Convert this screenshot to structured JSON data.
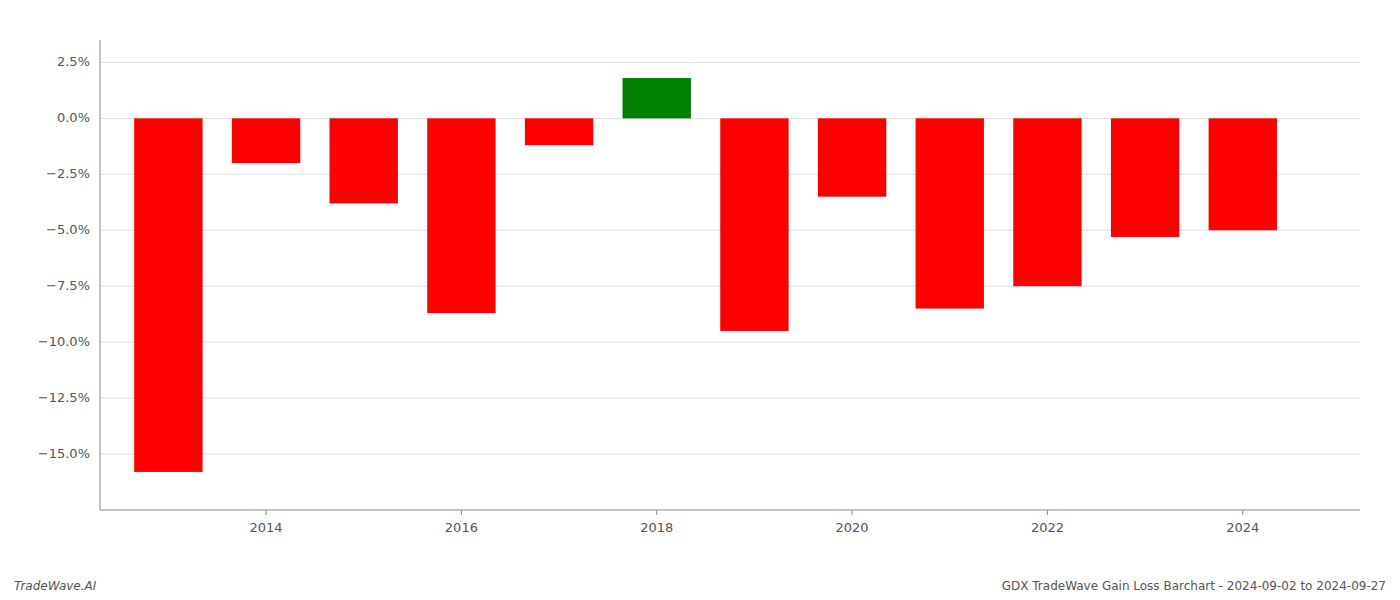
{
  "chart_data": {
    "type": "bar",
    "x": [
      2013,
      2014,
      2015,
      2016,
      2017,
      2018,
      2019,
      2020,
      2021,
      2022,
      2023,
      2024
    ],
    "values": [
      -15.8,
      -2.0,
      -3.8,
      -8.7,
      -1.2,
      1.8,
      -9.5,
      -3.5,
      -8.5,
      -7.5,
      -5.3,
      -5.0
    ],
    "colors": [
      "#ff0000",
      "#ff0000",
      "#ff0000",
      "#ff0000",
      "#ff0000",
      "#008000",
      "#ff0000",
      "#ff0000",
      "#ff0000",
      "#ff0000",
      "#ff0000",
      "#ff0000"
    ],
    "xlim": [
      2012.3,
      2025.2
    ],
    "xticks": [
      2014,
      2016,
      2018,
      2020,
      2022,
      2024
    ],
    "ylim": [
      -17.5,
      3.5
    ],
    "yticks": [
      {
        "value": 2.5,
        "label": "2.5%"
      },
      {
        "value": 0.0,
        "label": "0.0%"
      },
      {
        "value": -2.5,
        "label": "−2.5%"
      },
      {
        "value": -5.0,
        "label": "−5.0%"
      },
      {
        "value": -7.5,
        "label": "−7.5%"
      },
      {
        "value": -10.0,
        "label": "−10.0%"
      },
      {
        "value": -12.5,
        "label": "−12.5%"
      },
      {
        "value": -15.0,
        "label": "−15.0%"
      }
    ],
    "grid": true,
    "annotations": [
      "TradeWave.AI",
      "GDX TradeWave Gain Loss Barchart - 2024-09-02 to 2024-09-27"
    ]
  }
}
